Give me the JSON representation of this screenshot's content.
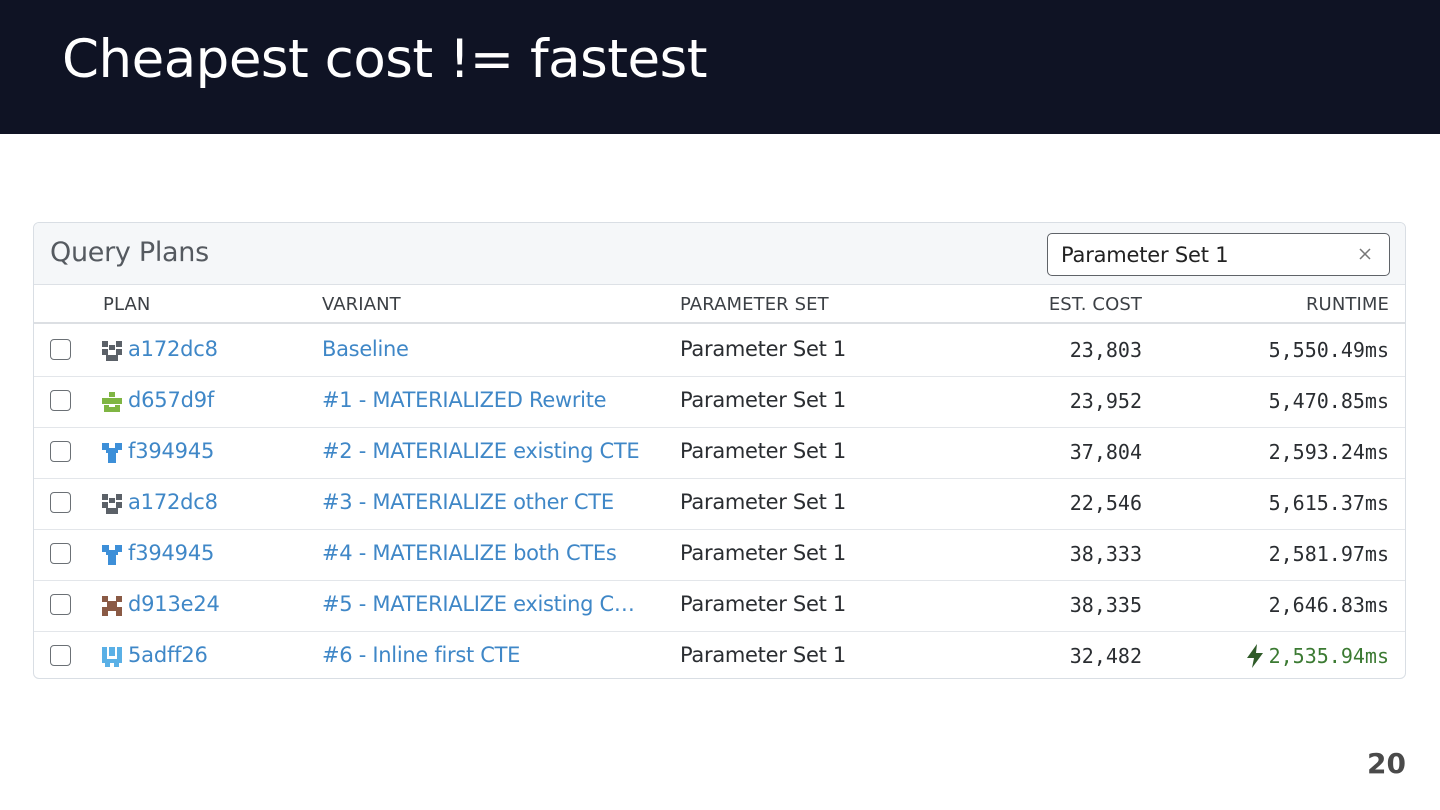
{
  "slide": {
    "title": "Cheapest cost != fastest",
    "page_number": "20"
  },
  "panel": {
    "title": "Query Plans",
    "filter": {
      "value": "Parameter Set 1",
      "clear_icon": "close-icon"
    }
  },
  "columns": {
    "plan": "PLAN",
    "variant": "VARIANT",
    "parameter_set": "PARAMETER SET",
    "est_cost": "EST. COST",
    "runtime": "RUNTIME"
  },
  "rows": [
    {
      "plan": "a172dc8",
      "plan_icon": "identicon-gray",
      "variant": "Baseline",
      "parameter_set": "Parameter Set 1",
      "est_cost": "23,803",
      "runtime": "5,550.49ms"
    },
    {
      "plan": "d657d9f",
      "plan_icon": "identicon-green",
      "variant": "#1 - MATERIALIZED Rewrite",
      "parameter_set": "Parameter Set 1",
      "est_cost": "23,952",
      "runtime": "5,470.85ms"
    },
    {
      "plan": "f394945",
      "plan_icon": "identicon-blue",
      "variant": "#2 - MATERIALIZE existing CTE",
      "parameter_set": "Parameter Set 1",
      "est_cost": "37,804",
      "runtime": "2,593.24ms"
    },
    {
      "plan": "a172dc8",
      "plan_icon": "identicon-gray",
      "variant": "#3 - MATERIALIZE other CTE",
      "parameter_set": "Parameter Set 1",
      "est_cost": "22,546",
      "runtime": "5,615.37ms"
    },
    {
      "plan": "f394945",
      "plan_icon": "identicon-blue",
      "variant": "#4 - MATERIALIZE both CTEs",
      "parameter_set": "Parameter Set 1",
      "est_cost": "38,333",
      "runtime": "2,581.97ms"
    },
    {
      "plan": "d913e24",
      "plan_icon": "identicon-brown",
      "variant": "#5 - MATERIALIZE existing CT…",
      "parameter_set": "Parameter Set 1",
      "est_cost": "38,335",
      "runtime": "2,646.83ms"
    },
    {
      "plan": "5adff26",
      "plan_icon": "identicon-lightblue",
      "variant": "#6 - Inline first CTE",
      "parameter_set": "Parameter Set 1",
      "est_cost": "32,482",
      "runtime": "2,535.94ms",
      "fastest": true,
      "fastest_icon": "lightning-bolt-icon"
    }
  ],
  "colors": {
    "header_bg": "#0f1324",
    "link": "#3f87c7",
    "fastest": "#3b7a32",
    "identicon-gray": "#5b6168",
    "identicon-green": "#7fb543",
    "identicon-blue": "#3d8fd8",
    "identicon-brown": "#8a5a45",
    "identicon-lightblue": "#5ab0e6"
  }
}
